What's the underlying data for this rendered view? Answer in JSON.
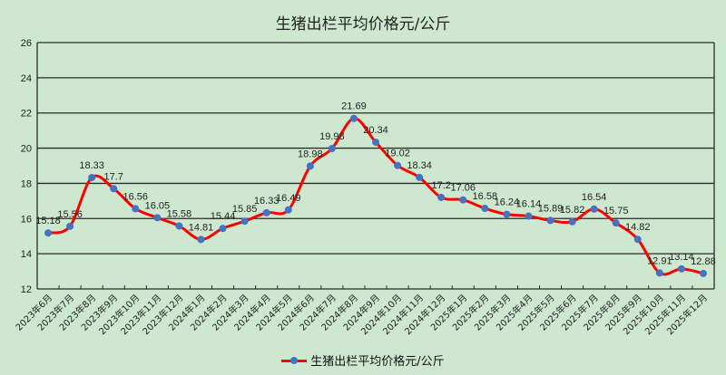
{
  "chart_data": {
    "type": "line",
    "title": "生猪出栏平均价格元/公斤",
    "xlabel": "",
    "ylabel": "",
    "ylim": [
      12,
      26
    ],
    "yticks": [
      12,
      14,
      16,
      18,
      20,
      22,
      24,
      26
    ],
    "grid": true,
    "legend_position": "bottom",
    "categories": [
      "2023年6月",
      "2023年7月",
      "2023年8月",
      "2023年9月",
      "2023年10月",
      "2023年11月",
      "2023年12月",
      "2024年1月",
      "2024年2月",
      "2024年3月",
      "2024年4月",
      "2024年5月",
      "2024年6月",
      "2024年7月",
      "2024年8月",
      "2024年9月",
      "2024年10月",
      "2024年11月",
      "2024年12月",
      "2025年1月",
      "2025年2月",
      "2025年3月",
      "2025年4月",
      "2025年5月",
      "2025年6月",
      "2025年7月",
      "2025年8月",
      "2025年9月",
      "2025年10月",
      "2025年11月",
      "2025年12月"
    ],
    "series": [
      {
        "name": "生猪出栏平均价格元/公斤",
        "color": "#ff0000",
        "marker_color": "#4472c4",
        "values": [
          15.18,
          15.56,
          18.33,
          17.7,
          16.56,
          16.05,
          15.58,
          14.81,
          15.44,
          15.85,
          16.33,
          16.49,
          18.98,
          19.98,
          21.69,
          20.34,
          19.02,
          18.34,
          17.2,
          17.06,
          16.58,
          16.24,
          16.14,
          15.89,
          15.82,
          16.54,
          15.75,
          14.82,
          12.91,
          13.14,
          12.88
        ]
      }
    ]
  },
  "legend": {
    "label": "生猪出栏平均价格元/公斤"
  }
}
